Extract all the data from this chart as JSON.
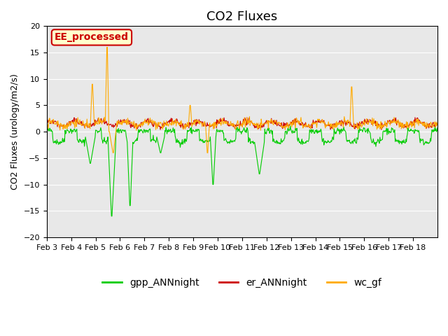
{
  "title": "CO2 Fluxes",
  "ylabel": "CO2 Fluxes (urology/m2/s)",
  "ylim": [
    -20,
    20
  ],
  "yticks": [
    -20,
    -15,
    -10,
    -5,
    0,
    5,
    10,
    15,
    20
  ],
  "xtick_labels": [
    "Feb 3",
    "Feb 4",
    "Feb 5",
    "Feb 6",
    "Feb 7",
    "Feb 8",
    "Feb 9",
    "Feb 10",
    "Feb 11",
    "Feb 12",
    "Feb 13",
    "Feb 14",
    "Feb 15",
    "Feb 16",
    "Feb 17",
    "Feb 18"
  ],
  "gpp_color": "#00cc00",
  "er_color": "#cc0000",
  "wc_color": "#ffaa00",
  "watermark_text": "EE_processed",
  "watermark_color": "#cc0000",
  "watermark_bg": "#ffffcc",
  "background_color": "#e8e8e8",
  "title_fontsize": 13,
  "axis_fontsize": 9,
  "legend_fontsize": 10,
  "line_width": 0.8
}
